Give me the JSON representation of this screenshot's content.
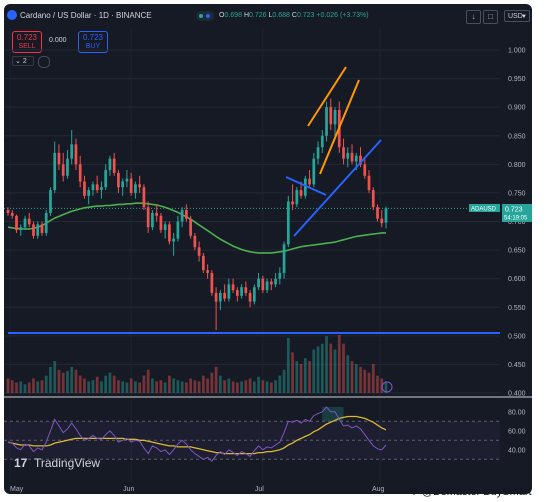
{
  "header": {
    "symbol_title": "Cardano / US Dollar · 1D · BINANCE",
    "ohlc": [
      {
        "key": "O",
        "value": "0.698"
      },
      {
        "key": "H",
        "value": "0.726"
      },
      {
        "key": "L",
        "value": "0.688"
      },
      {
        "key": "C",
        "value": "0.723"
      }
    ],
    "change": "+0.026 (+3.73%)",
    "sell_price": "0.723",
    "sell_label": "SELL",
    "spread": "0.000",
    "buy_price": "0.723",
    "buy_label": "BUY",
    "indicator_count": "2",
    "currency": "USD"
  },
  "price_badge": {
    "symbol": "ADAUSD",
    "price": "0.723",
    "countdown": "54:19:05"
  },
  "brand": {
    "name": "TradingView"
  },
  "watermark": "@BeMaster BuySmart",
  "colors": {
    "background": "#161a25",
    "up": "#26a69a",
    "down": "#ef5350",
    "ma": "#4caf50",
    "support": "#2962ff",
    "channel": "#ff9800",
    "rsi": "#7e57c2",
    "rsi_ma": "#d8b936"
  },
  "chart_data": [
    {
      "type": "candlestick",
      "title": "Cardano / US Dollar · 1D · BINANCE",
      "xlabel": "",
      "ylabel": "",
      "x_ticks": [
        "May",
        "Jun",
        "Jul",
        "Aug"
      ],
      "y_ticks": [
        "0.400",
        "0.450",
        "0.500",
        "0.550",
        "0.600",
        "0.650",
        "0.700",
        "0.750",
        "0.800",
        "0.850",
        "0.900",
        "0.950",
        "1.000"
      ],
      "ylim": [
        0.4,
        1.0
      ],
      "grid": true,
      "last_price": 0.723,
      "candles": [
        [
          0.72,
          0.725,
          0.71,
          0.715
        ],
        [
          0.715,
          0.72,
          0.705,
          0.71
        ],
        [
          0.71,
          0.712,
          0.68,
          0.685
        ],
        [
          0.685,
          0.695,
          0.675,
          0.69
        ],
        [
          0.69,
          0.71,
          0.685,
          0.705
        ],
        [
          0.705,
          0.715,
          0.69,
          0.695
        ],
        [
          0.695,
          0.7,
          0.67,
          0.675
        ],
        [
          0.675,
          0.7,
          0.67,
          0.695
        ],
        [
          0.695,
          0.7,
          0.675,
          0.68
        ],
        [
          0.68,
          0.72,
          0.675,
          0.715
        ],
        [
          0.715,
          0.76,
          0.71,
          0.755
        ],
        [
          0.755,
          0.84,
          0.75,
          0.82
        ],
        [
          0.82,
          0.835,
          0.79,
          0.8
        ],
        [
          0.8,
          0.82,
          0.77,
          0.78
        ],
        [
          0.78,
          0.825,
          0.775,
          0.81
        ],
        [
          0.81,
          0.86,
          0.8,
          0.835
        ],
        [
          0.835,
          0.845,
          0.79,
          0.8
        ],
        [
          0.8,
          0.815,
          0.76,
          0.77
        ],
        [
          0.77,
          0.78,
          0.74,
          0.745
        ],
        [
          0.745,
          0.76,
          0.73,
          0.755
        ],
        [
          0.755,
          0.77,
          0.745,
          0.765
        ],
        [
          0.765,
          0.78,
          0.75,
          0.755
        ],
        [
          0.755,
          0.77,
          0.74,
          0.76
        ],
        [
          0.76,
          0.8,
          0.755,
          0.79
        ],
        [
          0.79,
          0.815,
          0.78,
          0.81
        ],
        [
          0.81,
          0.82,
          0.78,
          0.785
        ],
        [
          0.785,
          0.79,
          0.75,
          0.76
        ],
        [
          0.76,
          0.775,
          0.745,
          0.77
        ],
        [
          0.77,
          0.79,
          0.76,
          0.775
        ],
        [
          0.775,
          0.785,
          0.745,
          0.75
        ],
        [
          0.75,
          0.77,
          0.74,
          0.765
        ],
        [
          0.765,
          0.78,
          0.75,
          0.76
        ],
        [
          0.76,
          0.765,
          0.72,
          0.725
        ],
        [
          0.725,
          0.735,
          0.68,
          0.69
        ],
        [
          0.69,
          0.72,
          0.685,
          0.715
        ],
        [
          0.715,
          0.73,
          0.7,
          0.71
        ],
        [
          0.71,
          0.715,
          0.68,
          0.685
        ],
        [
          0.685,
          0.7,
          0.67,
          0.695
        ],
        [
          0.695,
          0.7,
          0.66,
          0.665
        ],
        [
          0.665,
          0.68,
          0.64,
          0.67
        ],
        [
          0.67,
          0.71,
          0.665,
          0.7
        ],
        [
          0.7,
          0.725,
          0.69,
          0.72
        ],
        [
          0.72,
          0.73,
          0.7,
          0.705
        ],
        [
          0.705,
          0.71,
          0.67,
          0.675
        ],
        [
          0.675,
          0.68,
          0.65,
          0.655
        ],
        [
          0.655,
          0.665,
          0.63,
          0.64
        ],
        [
          0.64,
          0.645,
          0.61,
          0.615
        ],
        [
          0.615,
          0.625,
          0.6,
          0.61
        ],
        [
          0.61,
          0.615,
          0.57,
          0.575
        ],
        [
          0.575,
          0.585,
          0.51,
          0.56
        ],
        [
          0.56,
          0.58,
          0.545,
          0.575
        ],
        [
          0.575,
          0.59,
          0.56,
          0.565
        ],
        [
          0.565,
          0.6,
          0.56,
          0.59
        ],
        [
          0.59,
          0.6,
          0.575,
          0.58
        ],
        [
          0.58,
          0.585,
          0.56,
          0.57
        ],
        [
          0.57,
          0.59,
          0.565,
          0.585
        ],
        [
          0.585,
          0.595,
          0.57,
          0.575
        ],
        [
          0.575,
          0.58,
          0.55,
          0.56
        ],
        [
          0.56,
          0.59,
          0.555,
          0.585
        ],
        [
          0.585,
          0.61,
          0.58,
          0.6
        ],
        [
          0.6,
          0.605,
          0.575,
          0.58
        ],
        [
          0.58,
          0.6,
          0.575,
          0.595
        ],
        [
          0.595,
          0.6,
          0.58,
          0.59
        ],
        [
          0.59,
          0.61,
          0.585,
          0.6
        ],
        [
          0.6,
          0.62,
          0.59,
          0.61
        ],
        [
          0.61,
          0.665,
          0.6,
          0.66
        ],
        [
          0.66,
          0.745,
          0.655,
          0.735
        ],
        [
          0.735,
          0.765,
          0.72,
          0.73
        ],
        [
          0.73,
          0.76,
          0.725,
          0.755
        ],
        [
          0.755,
          0.77,
          0.74,
          0.745
        ],
        [
          0.745,
          0.78,
          0.74,
          0.775
        ],
        [
          0.775,
          0.79,
          0.76,
          0.765
        ],
        [
          0.765,
          0.82,
          0.76,
          0.81
        ],
        [
          0.81,
          0.84,
          0.8,
          0.83
        ],
        [
          0.83,
          0.86,
          0.82,
          0.85
        ],
        [
          0.85,
          0.91,
          0.84,
          0.9
        ],
        [
          0.9,
          0.915,
          0.86,
          0.87
        ],
        [
          0.87,
          0.9,
          0.85,
          0.895
        ],
        [
          0.895,
          0.91,
          0.82,
          0.83
        ],
        [
          0.83,
          0.845,
          0.8,
          0.81
        ],
        [
          0.81,
          0.83,
          0.795,
          0.82
        ],
        [
          0.82,
          0.835,
          0.8,
          0.805
        ],
        [
          0.805,
          0.82,
          0.79,
          0.815
        ],
        [
          0.815,
          0.83,
          0.795,
          0.8
        ],
        [
          0.8,
          0.81,
          0.775,
          0.78
        ],
        [
          0.78,
          0.79,
          0.75,
          0.755
        ],
        [
          0.755,
          0.76,
          0.72,
          0.725
        ],
        [
          0.725,
          0.73,
          0.7,
          0.705
        ],
        [
          0.705,
          0.72,
          0.69,
          0.697
        ],
        [
          0.698,
          0.726,
          0.688,
          0.723
        ]
      ],
      "volume": [
        0.25,
        0.22,
        0.18,
        0.2,
        0.15,
        0.18,
        0.25,
        0.2,
        0.22,
        0.3,
        0.45,
        0.55,
        0.4,
        0.35,
        0.38,
        0.45,
        0.4,
        0.3,
        0.25,
        0.2,
        0.22,
        0.28,
        0.2,
        0.3,
        0.35,
        0.3,
        0.22,
        0.2,
        0.18,
        0.25,
        0.2,
        0.18,
        0.3,
        0.4,
        0.25,
        0.2,
        0.22,
        0.18,
        0.3,
        0.25,
        0.22,
        0.2,
        0.18,
        0.25,
        0.22,
        0.2,
        0.3,
        0.25,
        0.35,
        0.45,
        0.3,
        0.22,
        0.25,
        0.2,
        0.18,
        0.2,
        0.22,
        0.25,
        0.2,
        0.28,
        0.22,
        0.2,
        0.18,
        0.22,
        0.3,
        0.4,
        0.95,
        0.7,
        0.55,
        0.5,
        0.6,
        0.55,
        0.75,
        0.8,
        0.85,
        0.98,
        0.85,
        0.75,
        1.0,
        0.85,
        0.65,
        0.55,
        0.5,
        0.45,
        0.4,
        0.35,
        0.5,
        0.3,
        0.25,
        0.2
      ],
      "moving_average": [
        0.69,
        0.689,
        0.688,
        0.687,
        0.687,
        0.687,
        0.688,
        0.69,
        0.693,
        0.697,
        0.702,
        0.706,
        0.709,
        0.712,
        0.715,
        0.718,
        0.72,
        0.722,
        0.724,
        0.725,
        0.726,
        0.727,
        0.727,
        0.728,
        0.728,
        0.729,
        0.73,
        0.73,
        0.731,
        0.731,
        0.732,
        0.732,
        0.732,
        0.731,
        0.73,
        0.729,
        0.727,
        0.725,
        0.722,
        0.719,
        0.716,
        0.712,
        0.708,
        0.704,
        0.699,
        0.694,
        0.689,
        0.684,
        0.679,
        0.674,
        0.669,
        0.665,
        0.661,
        0.657,
        0.654,
        0.651,
        0.649,
        0.647,
        0.646,
        0.645,
        0.645,
        0.645,
        0.645,
        0.646,
        0.647,
        0.648,
        0.65,
        0.652,
        0.654,
        0.656,
        0.657,
        0.658,
        0.659,
        0.66,
        0.661,
        0.662,
        0.663,
        0.664,
        0.666,
        0.668,
        0.67,
        0.672,
        0.674,
        0.675,
        0.676,
        0.677,
        0.678,
        0.679,
        0.68,
        0.68
      ]
    },
    {
      "type": "line",
      "title": "",
      "xlabel": "",
      "ylabel": "",
      "y_ticks": [
        "40.00",
        "60.00",
        "80.00"
      ],
      "ylim": [
        25,
        85
      ],
      "bands": [
        30,
        50,
        70
      ],
      "series": [
        {
          "values": [
            48,
            47,
            42,
            40,
            46,
            44,
            38,
            42,
            40,
            48,
            60,
            72,
            65,
            58,
            62,
            68,
            62,
            55,
            50,
            52,
            55,
            52,
            51,
            56,
            60,
            55,
            48,
            50,
            52,
            48,
            50,
            49,
            42,
            36,
            44,
            42,
            38,
            40,
            35,
            40,
            46,
            50,
            46,
            40,
            36,
            33,
            30,
            32,
            28,
            34,
            38,
            35,
            40,
            37,
            34,
            38,
            36,
            33,
            39,
            44,
            40,
            43,
            42,
            45,
            48,
            58,
            70,
            69,
            71,
            68,
            72,
            70,
            76,
            78,
            80,
            85,
            80,
            80,
            72,
            65,
            66,
            63,
            65,
            62,
            56,
            50,
            44,
            41,
            40,
            45
          ]
        },
        {
          "values": [
            48,
            47,
            46,
            45,
            45,
            45,
            44,
            44,
            44,
            44,
            45,
            47,
            48,
            49,
            50,
            51,
            52,
            52,
            52,
            52,
            52,
            52,
            52,
            52,
            52,
            52,
            52,
            52,
            51,
            51,
            51,
            50,
            50,
            49,
            48,
            47,
            46,
            45,
            44,
            44,
            43,
            43,
            43,
            43,
            42,
            41,
            40,
            39,
            38,
            37,
            37,
            36,
            36,
            36,
            36,
            36,
            36,
            36,
            36,
            37,
            37,
            38,
            38,
            39,
            40,
            42,
            45,
            47,
            50,
            52,
            54,
            56,
            59,
            61,
            64,
            67,
            69,
            71,
            73,
            74,
            75,
            75,
            75,
            74,
            73,
            71,
            69,
            66,
            63,
            61
          ]
        }
      ]
    }
  ]
}
